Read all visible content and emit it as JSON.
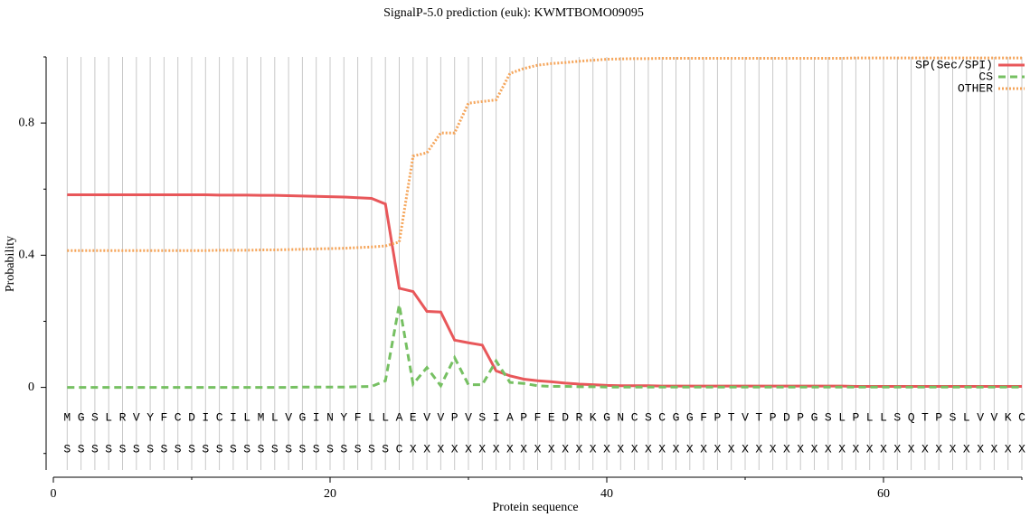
{
  "chart_data": {
    "type": "line",
    "title": "SignalP-5.0 prediction (euk):  KWMTBOMO09095",
    "xlabel": "Protein sequence",
    "ylabel": "Probability",
    "x": [
      1,
      2,
      3,
      4,
      5,
      6,
      7,
      8,
      9,
      10,
      11,
      12,
      13,
      14,
      15,
      16,
      17,
      18,
      19,
      20,
      21,
      22,
      23,
      24,
      25,
      26,
      27,
      28,
      29,
      30,
      31,
      32,
      33,
      34,
      35,
      36,
      37,
      38,
      39,
      40,
      41,
      42,
      43,
      44,
      45,
      46,
      47,
      48,
      49,
      50,
      51,
      52,
      53,
      54,
      55,
      56,
      57,
      58,
      59,
      60,
      61,
      62,
      63,
      64,
      65,
      66,
      67,
      68,
      69,
      70
    ],
    "sequence": [
      "M",
      "G",
      "S",
      "L",
      "R",
      "V",
      "Y",
      "F",
      "C",
      "D",
      "I",
      "C",
      "I",
      "L",
      "M",
      "L",
      "V",
      "G",
      "I",
      "N",
      "Y",
      "F",
      "L",
      "L",
      "A",
      "E",
      "V",
      "V",
      "P",
      "V",
      "S",
      "I",
      "A",
      "P",
      "F",
      "E",
      "D",
      "R",
      "K",
      "G",
      "N",
      "C",
      "S",
      "C",
      "G",
      "G",
      "F",
      "P",
      "T",
      "V",
      "T",
      "P",
      "D",
      "P",
      "G",
      "S",
      "L",
      "P",
      "L",
      "L",
      "S",
      "Q",
      "T",
      "P",
      "S",
      "L",
      "V",
      "V",
      "K",
      "C"
    ],
    "annotation": [
      "S",
      "S",
      "S",
      "S",
      "S",
      "S",
      "S",
      "S",
      "S",
      "S",
      "S",
      "S",
      "S",
      "S",
      "S",
      "S",
      "S",
      "S",
      "S",
      "S",
      "S",
      "S",
      "S",
      "S",
      "C",
      "X",
      "X",
      "X",
      "X",
      "X",
      "X",
      "X",
      "X",
      "X",
      "X",
      "X",
      "X",
      "X",
      "X",
      "X",
      "X",
      "X",
      "X",
      "X",
      "X",
      "X",
      "X",
      "X",
      "X",
      "X",
      "X",
      "X",
      "X",
      "X",
      "X",
      "X",
      "X",
      "X",
      "X",
      "X",
      "X",
      "X",
      "X",
      "X",
      "X",
      "X",
      "X",
      "X",
      "X",
      "X"
    ],
    "series": [
      {
        "name": "SP(Sec/SPI)",
        "color": "#e8575a",
        "style": "solid",
        "values": [
          0.583,
          0.583,
          0.583,
          0.583,
          0.583,
          0.583,
          0.583,
          0.583,
          0.583,
          0.583,
          0.583,
          0.582,
          0.582,
          0.582,
          0.581,
          0.581,
          0.58,
          0.579,
          0.578,
          0.577,
          0.576,
          0.574,
          0.572,
          0.555,
          0.3,
          0.29,
          0.23,
          0.228,
          0.143,
          0.135,
          0.128,
          0.05,
          0.035,
          0.025,
          0.02,
          0.017,
          0.013,
          0.01,
          0.008,
          0.006,
          0.005,
          0.005,
          0.005,
          0.004,
          0.004,
          0.004,
          0.004,
          0.004,
          0.004,
          0.004,
          0.004,
          0.004,
          0.004,
          0.004,
          0.004,
          0.004,
          0.004,
          0.003,
          0.003,
          0.003,
          0.003,
          0.003,
          0.003,
          0.003,
          0.003,
          0.003,
          0.003,
          0.003,
          0.003,
          0.003
        ]
      },
      {
        "name": "CS",
        "color": "#76c062",
        "style": "dashed",
        "values": [
          0,
          0,
          0,
          0,
          0,
          0,
          0,
          0,
          0,
          0,
          0,
          0,
          0,
          0,
          0,
          0,
          0,
          0.001,
          0.001,
          0.001,
          0.001,
          0.002,
          0.003,
          0.02,
          0.25,
          0.01,
          0.06,
          0.005,
          0.09,
          0.008,
          0.008,
          0.08,
          0.015,
          0.012,
          0.005,
          0.003,
          0.003,
          0.002,
          0.002,
          0.001,
          0.001,
          0.001,
          0.001,
          0.001,
          0.001,
          0.001,
          0.001,
          0.001,
          0.001,
          0.001,
          0.001,
          0.001,
          0.001,
          0.001,
          0.001,
          0.001,
          0.001,
          0.001,
          0.001,
          0.001,
          0.001,
          0.001,
          0.001,
          0.001,
          0.001,
          0.001,
          0.001,
          0.001,
          0.001,
          0.001
        ]
      },
      {
        "name": "OTHER",
        "color": "#f5a55a",
        "style": "dotted",
        "values": [
          0.414,
          0.414,
          0.414,
          0.414,
          0.414,
          0.414,
          0.414,
          0.414,
          0.414,
          0.414,
          0.414,
          0.415,
          0.415,
          0.415,
          0.416,
          0.416,
          0.417,
          0.418,
          0.419,
          0.42,
          0.421,
          0.423,
          0.425,
          0.428,
          0.44,
          0.7,
          0.71,
          0.77,
          0.77,
          0.86,
          0.865,
          0.87,
          0.95,
          0.965,
          0.975,
          0.98,
          0.983,
          0.987,
          0.99,
          0.993,
          0.994,
          0.995,
          0.995,
          0.996,
          0.996,
          0.996,
          0.996,
          0.996,
          0.996,
          0.996,
          0.996,
          0.996,
          0.996,
          0.996,
          0.996,
          0.996,
          0.996,
          0.997,
          0.997,
          0.997,
          0.997,
          0.997,
          0.997,
          0.997,
          0.997,
          0.997,
          0.997,
          0.997,
          0.997,
          0.997
        ]
      }
    ],
    "xlim": [
      0,
      70
    ],
    "xticks": [
      0,
      20,
      40,
      60
    ],
    "x_minor_ticks": [
      10,
      30,
      50,
      70
    ],
    "ylim": [
      -0.25,
      1
    ],
    "yticks": [
      0,
      0.4,
      0.8
    ],
    "y_minor_ticks": [
      -0.2,
      0.2,
      0.6,
      1
    ],
    "grid": true,
    "legend": "upper right"
  }
}
